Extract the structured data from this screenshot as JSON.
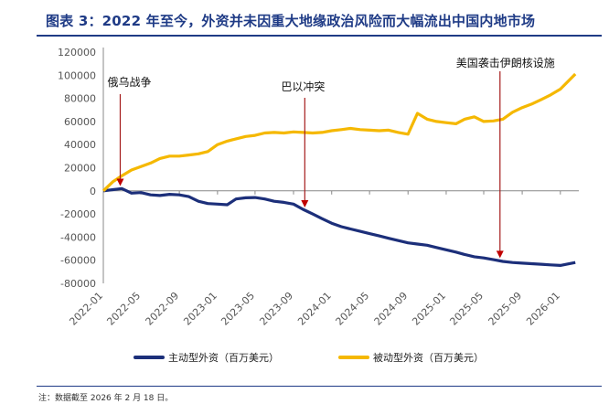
{
  "header": {
    "title": "图表 3：2022 年至今，外资并未因重大地缘政治风险而大幅流出中国内地市场"
  },
  "footer": {
    "note": "注：数据截至 2026 年 2 月 18 日。"
  },
  "chart_data": {
    "type": "line",
    "title": "图表 3：2022 年至今，外资并未因重大地缘政治风险而大幅流出中国内地市场",
    "xlabel": "",
    "ylabel": "",
    "ylim": [
      -80000,
      120000
    ],
    "yticks": [
      -80000,
      -60000,
      -40000,
      -20000,
      0,
      20000,
      40000,
      60000,
      80000,
      100000,
      120000
    ],
    "x_range": [
      "2022-01",
      "2026-03"
    ],
    "xticks": [
      "2022-01",
      "2022-05",
      "2022-09",
      "2023-01",
      "2023-05",
      "2023-09",
      "2024-01",
      "2024-05",
      "2024-09",
      "2025-01",
      "2025-05",
      "2025-09",
      "2026-01"
    ],
    "grid": false,
    "legend": "bottom",
    "series": [
      {
        "name": "主动型外资（百万美元）",
        "color": "#1c2f7a",
        "points": [
          [
            "2022-01-01",
            0
          ],
          [
            "2022-02-01",
            1000
          ],
          [
            "2022-03-01",
            2000
          ],
          [
            "2022-04-01",
            -2000
          ],
          [
            "2022-05-01",
            -1500
          ],
          [
            "2022-06-01",
            -3500
          ],
          [
            "2022-07-01",
            -4000
          ],
          [
            "2022-08-01",
            -3000
          ],
          [
            "2022-09-01",
            -3500
          ],
          [
            "2022-10-01",
            -5000
          ],
          [
            "2022-11-01",
            -9000
          ],
          [
            "2022-12-01",
            -11000
          ],
          [
            "2023-01-01",
            -11500
          ],
          [
            "2023-02-01",
            -12000
          ],
          [
            "2023-03-01",
            -7000
          ],
          [
            "2023-04-01",
            -6000
          ],
          [
            "2023-05-01",
            -5800
          ],
          [
            "2023-06-01",
            -7000
          ],
          [
            "2023-07-01",
            -9000
          ],
          [
            "2023-08-01",
            -10000
          ],
          [
            "2023-09-01",
            -11500
          ],
          [
            "2023-10-01",
            -16000
          ],
          [
            "2023-11-01",
            -20000
          ],
          [
            "2023-12-01",
            -24000
          ],
          [
            "2024-01-01",
            -28000
          ],
          [
            "2024-02-01",
            -31000
          ],
          [
            "2024-03-01",
            -33000
          ],
          [
            "2024-04-01",
            -35000
          ],
          [
            "2024-05-01",
            -37000
          ],
          [
            "2024-06-01",
            -39000
          ],
          [
            "2024-07-01",
            -41000
          ],
          [
            "2024-08-01",
            -43000
          ],
          [
            "2024-09-01",
            -45000
          ],
          [
            "2024-10-01",
            -46000
          ],
          [
            "2024-11-01",
            -47000
          ],
          [
            "2024-12-01",
            -49000
          ],
          [
            "2025-01-01",
            -51000
          ],
          [
            "2025-02-01",
            -53000
          ],
          [
            "2025-03-01",
            -55000
          ],
          [
            "2025-04-01",
            -57000
          ],
          [
            "2025-05-01",
            -58000
          ],
          [
            "2025-06-01",
            -59500
          ],
          [
            "2025-07-01",
            -61000
          ],
          [
            "2025-08-01",
            -62000
          ],
          [
            "2025-09-01",
            -62500
          ],
          [
            "2025-10-01",
            -63000
          ],
          [
            "2025-11-01",
            -63500
          ],
          [
            "2025-12-01",
            -64000
          ],
          [
            "2026-01-01",
            -64500
          ],
          [
            "2026-02-18",
            -62000
          ]
        ]
      },
      {
        "name": "被动型外资（百万美元）",
        "color": "#f5b800",
        "points": [
          [
            "2022-01-01",
            0
          ],
          [
            "2022-02-01",
            8000
          ],
          [
            "2022-03-01",
            13000
          ],
          [
            "2022-04-01",
            18000
          ],
          [
            "2022-05-01",
            21000
          ],
          [
            "2022-06-01",
            24000
          ],
          [
            "2022-07-01",
            28000
          ],
          [
            "2022-08-01",
            30000
          ],
          [
            "2022-09-01",
            30000
          ],
          [
            "2022-10-01",
            31000
          ],
          [
            "2022-11-01",
            32000
          ],
          [
            "2022-12-01",
            34000
          ],
          [
            "2023-01-01",
            40000
          ],
          [
            "2023-02-01",
            43000
          ],
          [
            "2023-03-01",
            45000
          ],
          [
            "2023-04-01",
            47000
          ],
          [
            "2023-05-01",
            48000
          ],
          [
            "2023-06-01",
            50000
          ],
          [
            "2023-07-01",
            50500
          ],
          [
            "2023-08-01",
            50000
          ],
          [
            "2023-09-01",
            51000
          ],
          [
            "2023-10-01",
            50500
          ],
          [
            "2023-11-01",
            50000
          ],
          [
            "2023-12-01",
            50500
          ],
          [
            "2024-01-01",
            52000
          ],
          [
            "2024-02-01",
            53000
          ],
          [
            "2024-03-01",
            54000
          ],
          [
            "2024-04-01",
            53000
          ],
          [
            "2024-05-01",
            52500
          ],
          [
            "2024-06-01",
            52000
          ],
          [
            "2024-07-01",
            52500
          ],
          [
            "2024-08-01",
            50500
          ],
          [
            "2024-09-01",
            49000
          ],
          [
            "2024-10-01",
            67000
          ],
          [
            "2024-11-01",
            62000
          ],
          [
            "2024-12-01",
            60000
          ],
          [
            "2025-01-01",
            59000
          ],
          [
            "2025-02-01",
            58000
          ],
          [
            "2025-03-01",
            62000
          ],
          [
            "2025-04-01",
            64000
          ],
          [
            "2025-05-01",
            60000
          ],
          [
            "2025-06-01",
            60500
          ],
          [
            "2025-07-01",
            62000
          ],
          [
            "2025-08-01",
            68000
          ],
          [
            "2025-09-01",
            72000
          ],
          [
            "2025-10-01",
            75000
          ],
          [
            "2025-11-01",
            79000
          ],
          [
            "2025-12-01",
            83000
          ],
          [
            "2026-01-01",
            88000
          ],
          [
            "2026-02-18",
            101000
          ]
        ]
      }
    ],
    "annotations": [
      {
        "text": "俄乌战争",
        "date": "2022-02-24",
        "series": 0
      },
      {
        "text": "巴以冲突",
        "date": "2023-10-07",
        "series": 0
      },
      {
        "text": "美国袭击伊朗核设施",
        "date": "2025-06-22",
        "series": 0
      }
    ]
  }
}
